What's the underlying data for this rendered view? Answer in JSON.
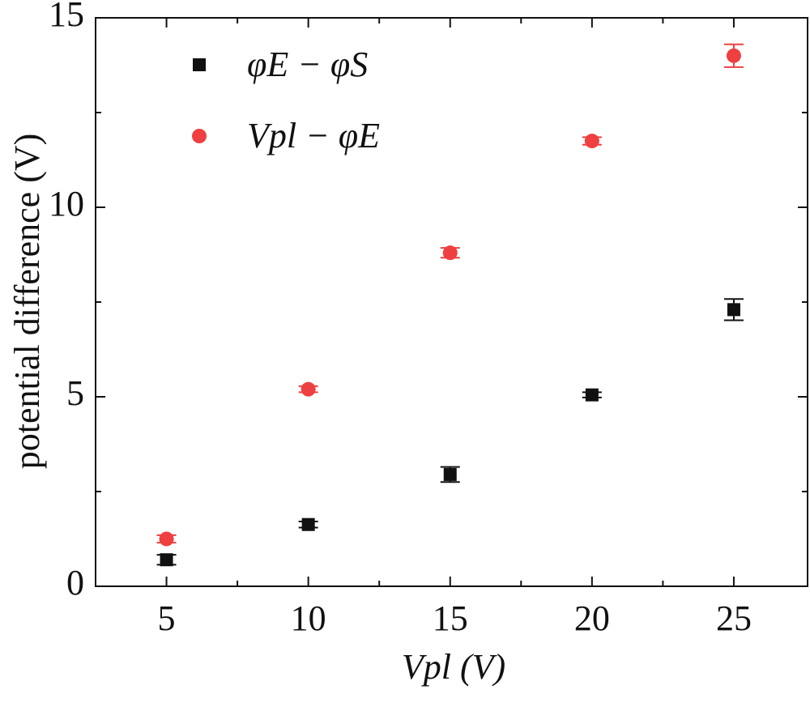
{
  "chart_data": {
    "type": "scatter",
    "xlabel": "Vpl (V)",
    "ylabel": "potential difference (V)",
    "xlim": [
      2.5,
      27.6
    ],
    "ylim": [
      0,
      15
    ],
    "xticks": [
      5,
      10,
      15,
      20,
      25
    ],
    "yticks": [
      0,
      5,
      10,
      15
    ],
    "legend": "upper left",
    "series": [
      {
        "name": "φE − φS",
        "color": "#111111",
        "marker": "square",
        "x": [
          5,
          10,
          15,
          20,
          25
        ],
        "values": [
          0.7,
          1.63,
          2.95,
          5.05,
          7.3
        ],
        "errors": [
          0.13,
          0.08,
          0.2,
          0.07,
          0.28
        ]
      },
      {
        "name": "Vpl − φE",
        "color": "#ee4040",
        "marker": "circle",
        "x": [
          5,
          10,
          15,
          20,
          25
        ],
        "values": [
          1.25,
          5.2,
          8.8,
          11.75,
          14.0
        ],
        "errors": [
          0.1,
          0.08,
          0.13,
          0.1,
          0.3
        ]
      }
    ]
  }
}
